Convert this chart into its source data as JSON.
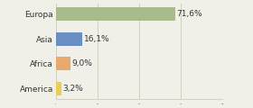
{
  "categories": [
    "Europa",
    "Asia",
    "Africa",
    "America"
  ],
  "values": [
    71.6,
    16.1,
    9.0,
    3.2
  ],
  "labels": [
    "71,6%",
    "16,1%",
    "9,0%",
    "3,2%"
  ],
  "bar_colors": [
    "#a8bb8a",
    "#6a8ec2",
    "#e8a96e",
    "#e8d055"
  ],
  "background_color": "#f0f0e8",
  "xlim": [
    0,
    100
  ],
  "bar_height": 0.55,
  "label_fontsize": 6.5,
  "tick_fontsize": 6.5,
  "grid_ticks": [
    0,
    25,
    50,
    75,
    100
  ],
  "grid_color": "#ccccbb"
}
